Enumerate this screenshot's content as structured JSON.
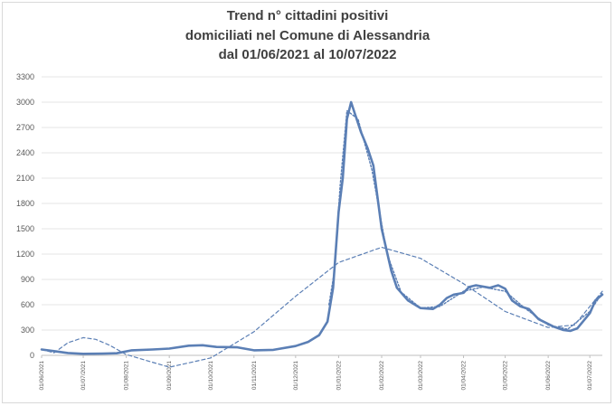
{
  "chart_data": {
    "type": "line",
    "title": [
      "Trend n° cittadini positivi",
      "domiciliati nel Comune di Alessandria",
      "dal 01/06/2021 al 10/07/2022"
    ],
    "xlabel": "",
    "ylabel": "",
    "x_range": [
      "2021-06-01",
      "2022-07-10"
    ],
    "ylim": [
      0,
      3300
    ],
    "yticks": [
      0,
      300,
      600,
      900,
      1200,
      1500,
      1800,
      2100,
      2400,
      2700,
      3000,
      3300
    ],
    "xticks": [
      "01/06/2021",
      "01/07/2021",
      "01/08/2021",
      "01/09/2021",
      "01/10/2021",
      "01/11/2021",
      "01/12/2021",
      "01/01/2022",
      "01/02/2022",
      "01/03/2022",
      "01/04/2022",
      "01/05/2022",
      "01/06/2022",
      "01/07/2022"
    ],
    "grid": true,
    "legend": "none",
    "series": [
      {
        "style": "solid",
        "color": "#5b7fb5",
        "points": [
          [
            "2021-06-01",
            70
          ],
          [
            "2021-06-10",
            50
          ],
          [
            "2021-06-20",
            28
          ],
          [
            "2021-07-01",
            18
          ],
          [
            "2021-07-15",
            20
          ],
          [
            "2021-07-25",
            25
          ],
          [
            "2021-08-05",
            60
          ],
          [
            "2021-08-20",
            70
          ],
          [
            "2021-09-01",
            80
          ],
          [
            "2021-09-15",
            115
          ],
          [
            "2021-09-25",
            120
          ],
          [
            "2021-10-05",
            100
          ],
          [
            "2021-10-20",
            95
          ],
          [
            "2021-11-01",
            60
          ],
          [
            "2021-11-15",
            65
          ],
          [
            "2021-12-01",
            110
          ],
          [
            "2021-12-10",
            160
          ],
          [
            "2021-12-18",
            240
          ],
          [
            "2021-12-24",
            400
          ],
          [
            "2021-12-28",
            800
          ],
          [
            "2022-01-01",
            1700
          ],
          [
            "2022-01-04",
            2100
          ],
          [
            "2022-01-07",
            2800
          ],
          [
            "2022-01-10",
            3000
          ],
          [
            "2022-01-13",
            2850
          ],
          [
            "2022-01-17",
            2650
          ],
          [
            "2022-01-22",
            2450
          ],
          [
            "2022-01-26",
            2250
          ],
          [
            "2022-02-01",
            1500
          ],
          [
            "2022-02-08",
            1000
          ],
          [
            "2022-02-12",
            800
          ],
          [
            "2022-02-20",
            650
          ],
          [
            "2022-03-01",
            560
          ],
          [
            "2022-03-10",
            550
          ],
          [
            "2022-03-15",
            600
          ],
          [
            "2022-03-20",
            680
          ],
          [
            "2022-03-25",
            720
          ],
          [
            "2022-04-01",
            740
          ],
          [
            "2022-04-05",
            810
          ],
          [
            "2022-04-10",
            830
          ],
          [
            "2022-04-20",
            800
          ],
          [
            "2022-04-26",
            830
          ],
          [
            "2022-05-01",
            790
          ],
          [
            "2022-05-06",
            650
          ],
          [
            "2022-05-12",
            580
          ],
          [
            "2022-05-18",
            550
          ],
          [
            "2022-05-25",
            430
          ],
          [
            "2022-06-05",
            340
          ],
          [
            "2022-06-12",
            300
          ],
          [
            "2022-06-17",
            290
          ],
          [
            "2022-06-22",
            320
          ],
          [
            "2022-07-01",
            500
          ],
          [
            "2022-07-05",
            650
          ],
          [
            "2022-07-10",
            720
          ]
        ]
      },
      {
        "style": "dashed",
        "color": "#5b7fb5",
        "points": [
          [
            "2021-06-01",
            70
          ],
          [
            "2021-06-10",
            30
          ],
          [
            "2021-06-20",
            150
          ],
          [
            "2021-07-01",
            210
          ],
          [
            "2021-07-10",
            190
          ],
          [
            "2021-07-20",
            120
          ],
          [
            "2021-08-01",
            10
          ],
          [
            "2021-09-01",
            -140
          ],
          [
            "2021-10-01",
            -30
          ],
          [
            "2021-11-01",
            280
          ],
          [
            "2021-12-01",
            700
          ],
          [
            "2022-01-01",
            1100
          ],
          [
            "2022-02-01",
            1280
          ],
          [
            "2022-03-01",
            1150
          ],
          [
            "2022-04-01",
            850
          ],
          [
            "2022-05-01",
            520
          ],
          [
            "2022-06-01",
            330
          ],
          [
            "2022-06-20",
            360
          ],
          [
            "2022-07-10",
            760
          ]
        ]
      },
      {
        "style": "dotted",
        "color": "#5b7fb5",
        "points": [
          [
            "2021-12-25",
            600
          ],
          [
            "2021-12-29",
            1000
          ],
          [
            "2022-01-02",
            2000
          ],
          [
            "2022-01-07",
            2900
          ],
          [
            "2022-01-15",
            2800
          ],
          [
            "2022-01-25",
            2200
          ],
          [
            "2022-02-05",
            1200
          ],
          [
            "2022-02-15",
            750
          ],
          [
            "2022-03-01",
            560
          ],
          [
            "2022-03-15",
            580
          ],
          [
            "2022-04-01",
            760
          ],
          [
            "2022-04-15",
            810
          ],
          [
            "2022-05-01",
            760
          ],
          [
            "2022-05-15",
            560
          ],
          [
            "2022-06-01",
            360
          ],
          [
            "2022-06-15",
            310
          ],
          [
            "2022-07-01",
            520
          ],
          [
            "2022-07-10",
            740
          ]
        ]
      }
    ]
  }
}
